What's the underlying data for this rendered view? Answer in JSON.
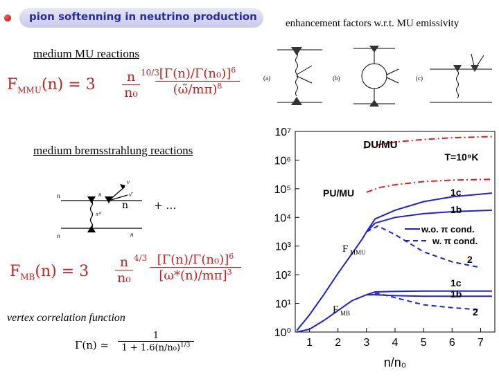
{
  "title": "pion softenning in neutrino production",
  "right_header": "enhancement factors w.r.t. MU emissivity",
  "left": {
    "mu_heading": "medium MU reactions",
    "mb_heading": "medium bremsstrahlung reactions",
    "vertex_heading": "vertex correlation function",
    "ellipsis": "+ …",
    "mu_formula": {
      "lhs": "F",
      "sub": "MMU",
      "rest": "(n) = 3",
      "frac_num": "n",
      "frac_den": "n₀",
      "exp": "10/3",
      "bracket_num": "[Γ(n)/Γ(n₀)]",
      "bracket_exp": "6",
      "den": "(ω̃/mπ)",
      "den_exp": "8"
    },
    "mb_formula": {
      "lhs": "F",
      "sub": "MB",
      "rest": "(n) = 3",
      "frac_num": "n",
      "frac_den": "n₀",
      "exp": "4/3",
      "bracket_num": "[Γ(n)/Γ(n₀)]",
      "bracket_exp": "6",
      "den": "[ω*(n)/mπ]",
      "den_exp": "3"
    },
    "vertex_formula": {
      "lhs": "Γ(n) ≃",
      "num": "1",
      "den": "1 + 1.6(n/n₀)",
      "den_exp": "1/3"
    },
    "feynman_labels": {
      "n": "n",
      "p": "p",
      "nu": "ν",
      "nubar": "ν̄",
      "pi0": "π⁰"
    }
  },
  "diagram_labels": {
    "a": "(a)",
    "b": "(b)",
    "c": "(c)"
  },
  "chart_data": {
    "type": "line",
    "xlabel": "n/n₀",
    "ylabel": "",
    "xlim": [
      0.5,
      7.5
    ],
    "ylim_log10": [
      0,
      7
    ],
    "x_ticks": [
      "1",
      "2",
      "3",
      "4",
      "5",
      "6",
      "7"
    ],
    "y_ticks": [
      "10⁰",
      "10¹",
      "10²",
      "10³",
      "10⁴",
      "10⁵",
      "10⁶",
      "10⁷"
    ],
    "annotations": [
      "DU/MU",
      "T=10⁹K",
      "PU/MU",
      "1c",
      "1b",
      "w.o. π cond.",
      "w. π cond.",
      "2",
      "F",
      "MMU",
      "F",
      "MB",
      "1c",
      "1b",
      "2"
    ],
    "legend": [
      {
        "label": "w.o. π cond.",
        "style": "solid"
      },
      {
        "label": "w. π cond.",
        "style": "dashed"
      }
    ],
    "colors": {
      "curves": "#1f1fd8",
      "red": "#d61f1f"
    },
    "series": [
      {
        "name": "DU/MU",
        "style": "dashdot",
        "color": "red",
        "x": [
          2.9,
          3.5,
          4,
          5,
          6,
          7.4
        ],
        "log10y": [
          6.42,
          6.55,
          6.63,
          6.72,
          6.78,
          6.82
        ]
      },
      {
        "name": "PU/MU",
        "style": "dashdot",
        "color": "red",
        "x": [
          3.0,
          3.5,
          4,
          5,
          6,
          7.4
        ],
        "log10y": [
          4.88,
          5.05,
          5.14,
          5.25,
          5.3,
          5.33
        ]
      },
      {
        "name": "",
        "style": "solid",
        "color": "blue",
        "x": [
          0.55,
          1,
          1.5,
          2,
          2.5,
          2.85,
          3
        ],
        "log10y": [
          0.05,
          0.6,
          1.3,
          2.05,
          2.75,
          3.25,
          3.5
        ]
      },
      {
        "name": "1c",
        "style": "solid",
        "color": "blue",
        "x": [
          3,
          3.3,
          4,
          5,
          6,
          7.4
        ],
        "log10y": [
          3.5,
          3.95,
          4.25,
          4.55,
          4.72,
          4.85
        ]
      },
      {
        "name": "1b",
        "style": "solid",
        "color": "blue",
        "x": [
          3,
          3.3,
          4,
          5,
          6,
          7.4
        ],
        "log10y": [
          3.5,
          3.8,
          4.0,
          4.13,
          4.2,
          4.25
        ]
      },
      {
        "name": "2",
        "style": "dashed",
        "color": "blue",
        "x": [
          3,
          3.4,
          4,
          5,
          6,
          7
        ],
        "log10y": [
          3.5,
          3.7,
          3.4,
          2.8,
          2.45,
          2.25
        ]
      },
      {
        "name": "",
        "style": "solid",
        "color": "blue",
        "x": [
          0.55,
          1,
          1.5,
          2,
          2.5,
          3
        ],
        "log10y": [
          0.0,
          0.1,
          0.4,
          0.75,
          1.1,
          1.3
        ]
      },
      {
        "name": "1c",
        "style": "solid",
        "color": "blue",
        "x": [
          3,
          3.3,
          4,
          5,
          6,
          7.4
        ],
        "log10y": [
          1.3,
          1.4,
          1.42,
          1.43,
          1.43,
          1.43
        ]
      },
      {
        "name": "1b",
        "style": "solid",
        "color": "blue",
        "x": [
          3,
          3.3,
          4,
          5,
          6,
          7.4
        ],
        "log10y": [
          1.3,
          1.3,
          1.27,
          1.25,
          1.25,
          1.25
        ]
      },
      {
        "name": "2",
        "style": "dashed",
        "color": "blue",
        "x": [
          3,
          3.4,
          4,
          5,
          6,
          7
        ],
        "log10y": [
          1.3,
          1.35,
          1.2,
          0.95,
          0.85,
          0.78
        ]
      }
    ]
  }
}
